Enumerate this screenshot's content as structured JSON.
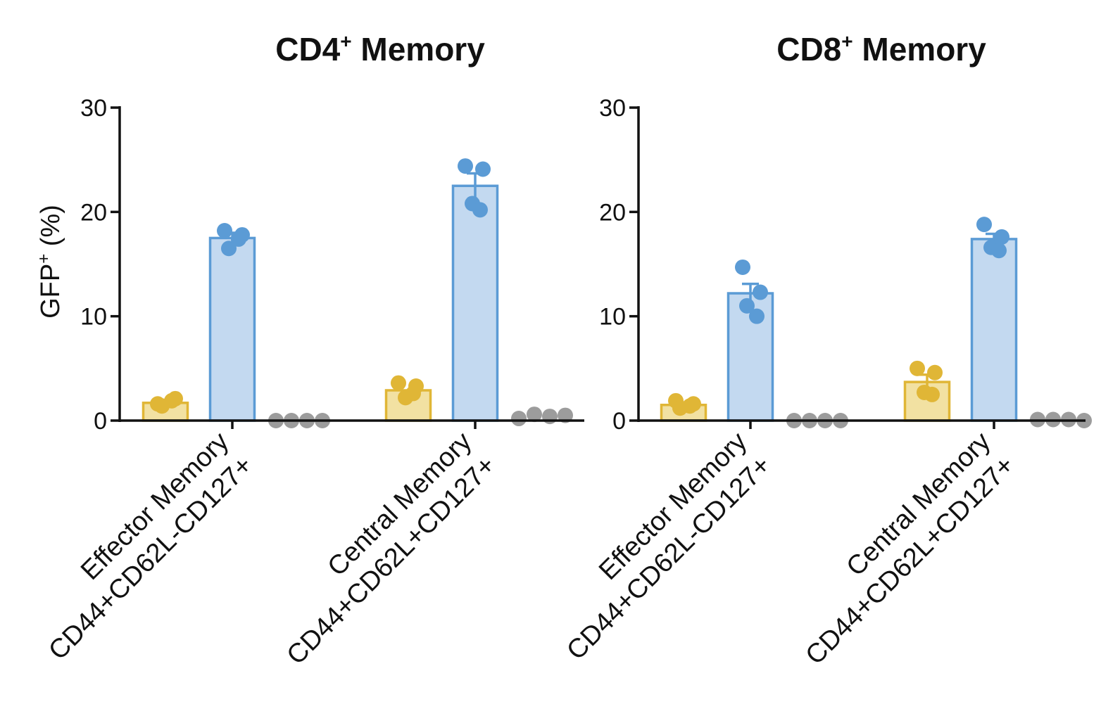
{
  "chart_data": [
    {
      "type": "bar",
      "title_main": "CD4",
      "title_sup": "+",
      "title_rest": " Memory",
      "ylabel_main": "GFP",
      "ylabel_sup": "+",
      "ylabel_rest": " (%)",
      "ylim": [
        0,
        30
      ],
      "yticks": [
        0,
        10,
        20,
        30
      ],
      "ytick_labels": [
        "0",
        "10",
        "20",
        "30"
      ],
      "categories": [
        {
          "line1": "Effector Memory",
          "line2": "CD44+CD62L-CD127+"
        },
        {
          "line1": "Central Memory",
          "line2": "CD44+CD62L+CD127+"
        }
      ],
      "series": [
        {
          "name": "yellow",
          "color": "#e0b636",
          "fill": "#f2e1a2",
          "bars": true,
          "values": [
            1.7,
            2.9
          ],
          "sem": [
            0,
            0
          ],
          "points": [
            [
              1.6,
              2.1,
              1.4,
              1.9
            ],
            [
              3.6,
              3.3,
              2.2,
              2.6
            ]
          ]
        },
        {
          "name": "blue",
          "color": "#5b9bd5",
          "fill": "#c3d9f0",
          "bars": true,
          "values": [
            17.5,
            22.5
          ],
          "sem": [
            0.5,
            1.2
          ],
          "points": [
            [
              18.2,
              17.8,
              16.5,
              17.4
            ],
            [
              24.4,
              24.1,
              20.8,
              20.2
            ]
          ]
        },
        {
          "name": "grey",
          "color": "#9c9c9c",
          "fill": "#9c9c9c",
          "bars": false,
          "values": [
            0,
            0.3
          ],
          "sem": [
            0,
            0
          ],
          "points": [
            [
              0.0,
              0.0,
              0.0,
              0.0
            ],
            [
              0.2,
              0.6,
              0.4,
              0.5
            ]
          ]
        }
      ]
    },
    {
      "type": "bar",
      "title_main": "CD8",
      "title_sup": "+",
      "title_rest": " Memory",
      "ylabel_main": "",
      "ylabel_sup": "",
      "ylabel_rest": "",
      "ylim": [
        0,
        30
      ],
      "yticks": [
        0,
        10,
        20,
        30
      ],
      "ytick_labels": [
        "0",
        "10",
        "20",
        "30"
      ],
      "categories": [
        {
          "line1": "Effector Memory",
          "line2": "CD44+CD62L-CD127+"
        },
        {
          "line1": "Central Memory",
          "line2": "CD44+CD62L+CD127+"
        }
      ],
      "series": [
        {
          "name": "yellow",
          "color": "#e0b636",
          "fill": "#f2e1a2",
          "bars": true,
          "values": [
            1.5,
            3.7
          ],
          "sem": [
            0,
            0.7
          ],
          "points": [
            [
              1.9,
              1.6,
              1.2,
              1.4
            ],
            [
              5.0,
              4.6,
              2.7,
              2.5
            ]
          ]
        },
        {
          "name": "blue",
          "color": "#5b9bd5",
          "fill": "#c3d9f0",
          "bars": true,
          "values": [
            12.2,
            17.4
          ],
          "sem": [
            0.9,
            0.5
          ],
          "points": [
            [
              14.7,
              12.3,
              11.0,
              10.0
            ],
            [
              18.8,
              17.6,
              16.6,
              16.3
            ]
          ]
        },
        {
          "name": "grey",
          "color": "#9c9c9c",
          "fill": "#9c9c9c",
          "bars": false,
          "values": [
            0,
            0.1
          ],
          "sem": [
            0,
            0
          ],
          "points": [
            [
              0.0,
              0.0,
              0.0,
              0.0
            ],
            [
              0.1,
              0.1,
              0.1,
              0.0
            ]
          ]
        }
      ]
    }
  ]
}
